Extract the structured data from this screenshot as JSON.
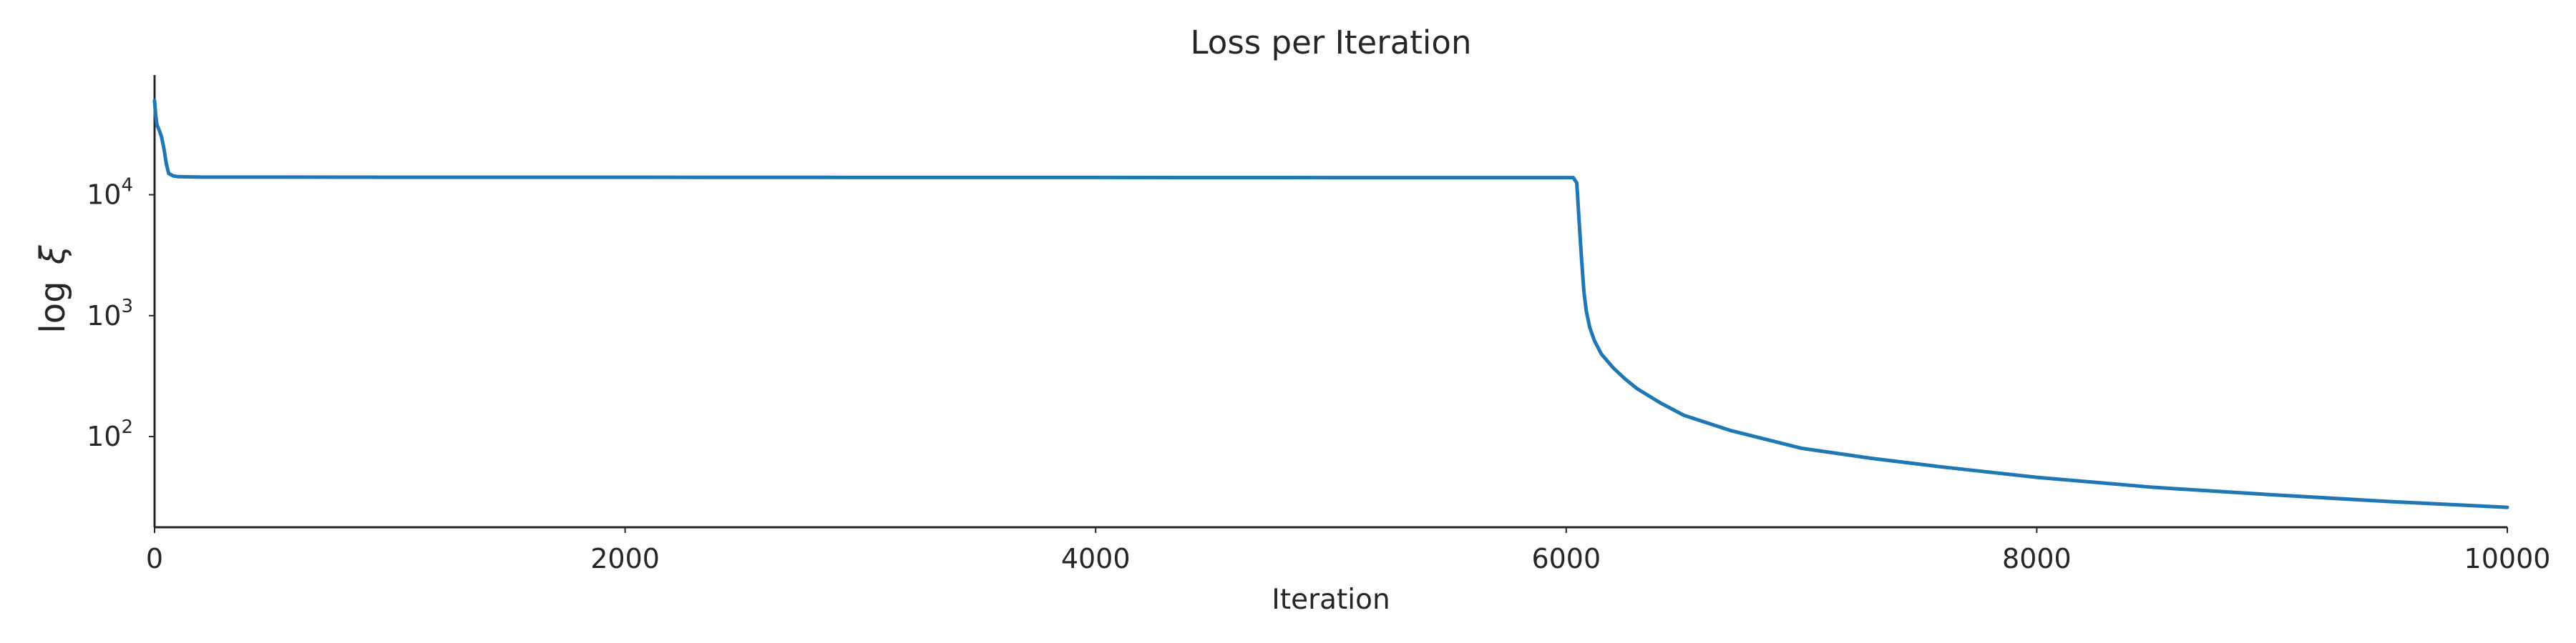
{
  "chart_data": {
    "type": "line",
    "title": "Loss per Iteration",
    "xlabel": "Iteration",
    "ylabel_text": "log",
    "ylabel_symbol": "ξ",
    "xlim": [
      0,
      10000
    ],
    "ylim_log10": [
      1.25,
      4.99
    ],
    "yscale": "log",
    "grid": false,
    "x_ticks": [
      0,
      2000,
      4000,
      6000,
      8000,
      10000
    ],
    "y_ticks": [
      {
        "base": "10",
        "exp": "2",
        "value": 100
      },
      {
        "base": "10",
        "exp": "3",
        "value": 1000
      },
      {
        "base": "10",
        "exp": "4",
        "value": 10000
      }
    ],
    "series": [
      {
        "color": "#1f77b4",
        "x": [
          0,
          5,
          10,
          20,
          30,
          40,
          50,
          60,
          80,
          100,
          200,
          500,
          1000,
          2000,
          3000,
          4000,
          5000,
          5800,
          6000,
          6030,
          6045,
          6055,
          6065,
          6075,
          6085,
          6100,
          6120,
          6150,
          6200,
          6250,
          6300,
          6400,
          6500,
          6700,
          7000,
          7300,
          7600,
          8000,
          8500,
          9000,
          9500,
          10000
        ],
        "y": [
          60000,
          45000,
          38000,
          34000,
          30000,
          24000,
          18000,
          15000,
          14300,
          14100,
          14000,
          14000,
          13950,
          13950,
          13900,
          13900,
          13850,
          13850,
          13850,
          13850,
          12500,
          6000,
          3000,
          1600,
          1100,
          800,
          620,
          480,
          370,
          300,
          250,
          190,
          150,
          112,
          80,
          66,
          56,
          46,
          38,
          33,
          29,
          26
        ]
      }
    ]
  }
}
